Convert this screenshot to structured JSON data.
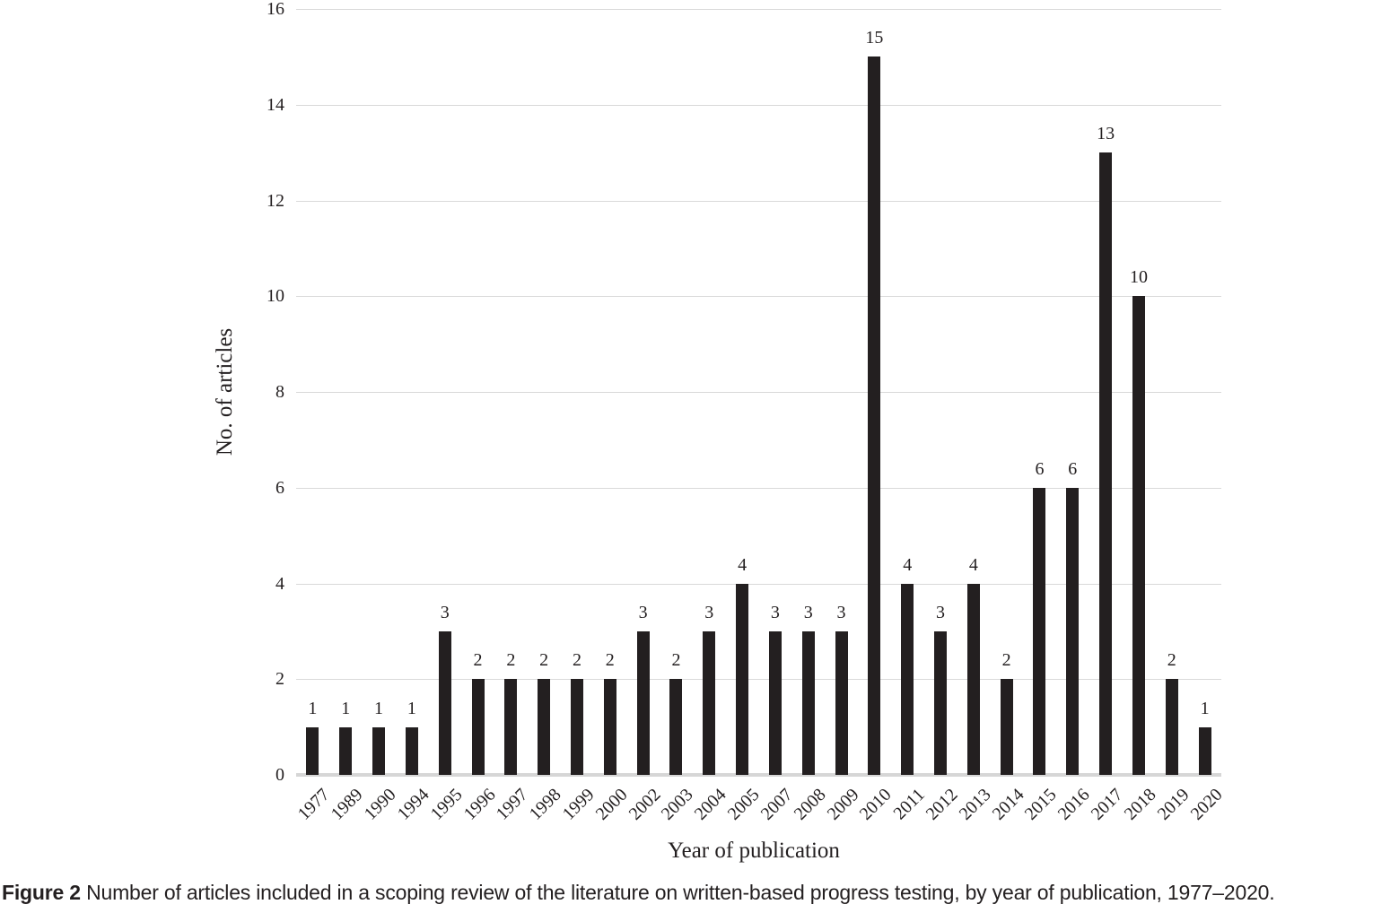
{
  "chart_data": {
    "type": "bar",
    "title": "",
    "xlabel": "Year of publication",
    "ylabel": "No. of articles",
    "categories": [
      "1977",
      "1989",
      "1990",
      "1994",
      "1995",
      "1996",
      "1997",
      "1998",
      "1999",
      "2000",
      "2002",
      "2003",
      "2004",
      "2005",
      "2007",
      "2008",
      "2009",
      "2010",
      "2011",
      "2012",
      "2013",
      "2014",
      "2015",
      "2016",
      "2017",
      "2018",
      "2019",
      "2020"
    ],
    "values": [
      1,
      1,
      1,
      1,
      3,
      2,
      2,
      2,
      2,
      2,
      3,
      2,
      3,
      4,
      3,
      3,
      3,
      15,
      4,
      3,
      4,
      2,
      6,
      6,
      13,
      10,
      2,
      1
    ],
    "ylim": [
      0,
      16
    ],
    "ytick_step": 2,
    "yticks": [
      0,
      2,
      4,
      6,
      8,
      10,
      12,
      14,
      16
    ],
    "grid": "horizontal",
    "legend": "none",
    "data_labels": true,
    "bar_color": "#231f20",
    "gridline_color": "#d9d9d9",
    "baseline_color": "#d6d6d6"
  },
  "caption": {
    "label": "Figure 2",
    "text": " Number of articles included in a scoping review of the literature on written-based progress testing, by year of publication, 1977–2020."
  }
}
